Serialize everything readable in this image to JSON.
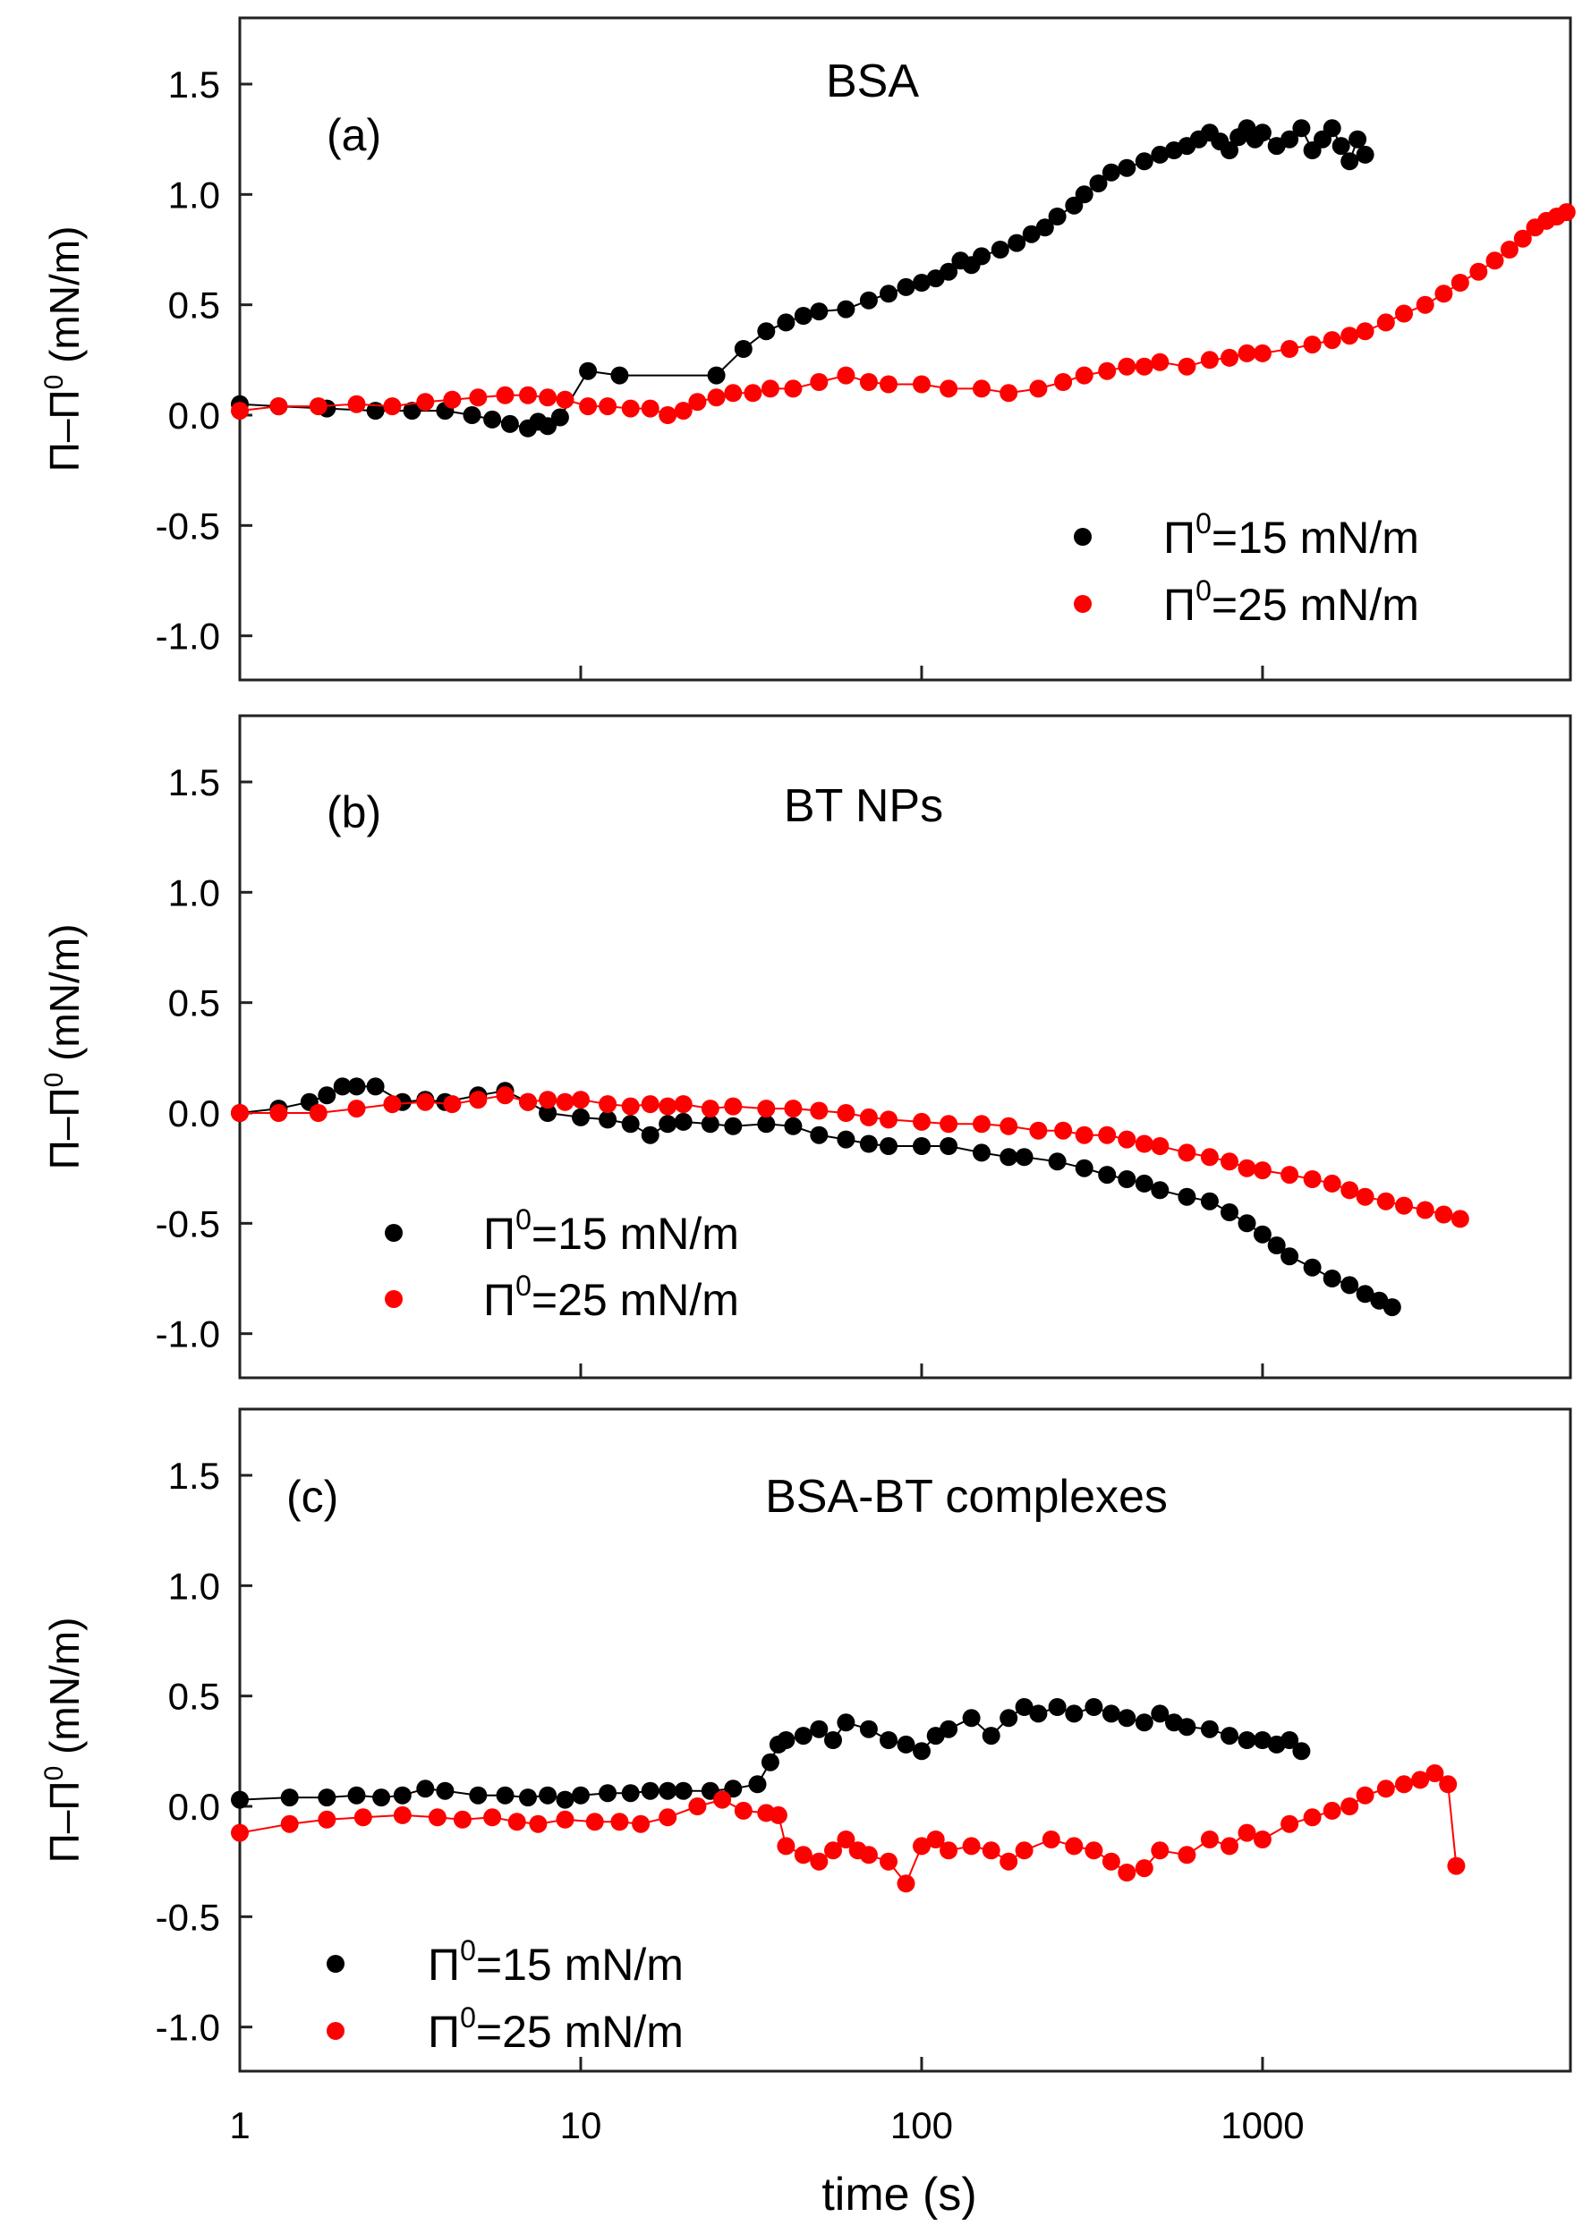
{
  "chart_data": [
    {
      "type": "scatter",
      "panel_label": "(a)",
      "title": "BSA",
      "xlabel": "time (s)",
      "ylabel": "Π−Π⁰ (mN/m)",
      "xscale": "log",
      "xlim": [
        1,
        8000
      ],
      "ylim": [
        -1.2,
        1.8
      ],
      "yticks": [
        -1.0,
        -0.5,
        0.0,
        0.5,
        1.0,
        1.5
      ],
      "ytick_labels": [
        "-1.0",
        "-0.5",
        "0.0",
        "0.5",
        "1.0",
        "1.5"
      ],
      "legend_position": "bottom-right",
      "series": [
        {
          "name": "Π⁰=15 mN/m",
          "legend_main": "Π",
          "legend_sup": "0",
          "legend_rest": "=15 mN/m",
          "color": "#000000",
          "x": [
            1,
            1.3,
            1.8,
            2.5,
            3.2,
            4,
            4.8,
            5.5,
            6.2,
            7,
            7.5,
            8,
            8.7,
            10.5,
            13,
            25,
            30,
            35,
            40,
            45,
            50,
            60,
            70,
            80,
            90,
            100,
            110,
            120,
            130,
            140,
            150,
            170,
            190,
            210,
            230,
            250,
            280,
            300,
            330,
            360,
            400,
            450,
            500,
            550,
            600,
            650,
            700,
            750,
            800,
            850,
            900,
            950,
            1000,
            1100,
            1200,
            1300,
            1400,
            1500,
            1600,
            1700,
            1800,
            1900,
            2000
          ],
          "y": [
            0.05,
            0.04,
            0.03,
            0.02,
            0.02,
            0.02,
            0.0,
            -0.02,
            -0.04,
            -0.06,
            -0.03,
            -0.05,
            -0.01,
            0.2,
            0.18,
            0.18,
            0.3,
            0.38,
            0.42,
            0.45,
            0.47,
            0.48,
            0.52,
            0.55,
            0.58,
            0.6,
            0.62,
            0.65,
            0.7,
            0.68,
            0.72,
            0.75,
            0.78,
            0.82,
            0.85,
            0.9,
            0.95,
            1.0,
            1.05,
            1.1,
            1.12,
            1.15,
            1.18,
            1.2,
            1.22,
            1.25,
            1.28,
            1.24,
            1.2,
            1.26,
            1.3,
            1.25,
            1.28,
            1.22,
            1.25,
            1.3,
            1.2,
            1.25,
            1.3,
            1.22,
            1.15,
            1.25,
            1.18
          ]
        },
        {
          "name": "Π⁰=25 mN/m",
          "legend_main": "Π",
          "legend_sup": "0",
          "legend_rest": "=25 mN/m",
          "color": "#ff0000",
          "x": [
            1,
            1.3,
            1.7,
            2.2,
            2.8,
            3.5,
            4.2,
            5,
            6,
            7,
            8,
            9,
            10.5,
            12,
            14,
            16,
            18,
            20,
            22,
            25,
            28,
            32,
            36,
            42,
            50,
            60,
            70,
            80,
            100,
            120,
            150,
            180,
            220,
            260,
            300,
            350,
            400,
            450,
            500,
            600,
            700,
            800,
            900,
            1000,
            1200,
            1400,
            1600,
            1800,
            2000,
            2300,
            2600,
            3000,
            3400,
            3800,
            4300,
            4800,
            5300,
            5800,
            6300,
            6800,
            7300,
            7800
          ],
          "y": [
            0.02,
            0.04,
            0.04,
            0.05,
            0.04,
            0.06,
            0.07,
            0.08,
            0.09,
            0.09,
            0.08,
            0.07,
            0.04,
            0.04,
            0.03,
            0.03,
            0.0,
            0.02,
            0.06,
            0.08,
            0.1,
            0.1,
            0.12,
            0.12,
            0.15,
            0.18,
            0.15,
            0.14,
            0.14,
            0.12,
            0.12,
            0.1,
            0.12,
            0.15,
            0.18,
            0.2,
            0.22,
            0.22,
            0.24,
            0.22,
            0.25,
            0.26,
            0.28,
            0.28,
            0.3,
            0.32,
            0.34,
            0.36,
            0.38,
            0.42,
            0.46,
            0.5,
            0.55,
            0.6,
            0.65,
            0.7,
            0.75,
            0.8,
            0.85,
            0.88,
            0.9,
            0.92
          ]
        }
      ]
    },
    {
      "type": "scatter",
      "panel_label": "(b)",
      "title": "BT NPs",
      "xlabel": "time (s)",
      "ylabel": "Π−Π⁰ (mN/m)",
      "xscale": "log",
      "xlim": [
        1,
        8000
      ],
      "ylim": [
        -1.2,
        1.8
      ],
      "yticks": [
        -1.0,
        -0.5,
        0.0,
        0.5,
        1.0,
        1.5
      ],
      "ytick_labels": [
        "-1.0",
        "-0.5",
        "0.0",
        "0.5",
        "1.0",
        "1.5"
      ],
      "legend_position": "bottom-left",
      "series": [
        {
          "name": "Π⁰=15 mN/m",
          "legend_main": "Π",
          "legend_sup": "0",
          "legend_rest": "=15 mN/m",
          "color": "#000000",
          "x": [
            1,
            1.3,
            1.6,
            1.8,
            2,
            2.2,
            2.5,
            3,
            3.5,
            4,
            5,
            6,
            7,
            8,
            10,
            12,
            14,
            16,
            18,
            20,
            24,
            28,
            35,
            42,
            50,
            60,
            70,
            80,
            100,
            120,
            150,
            180,
            200,
            250,
            300,
            350,
            400,
            450,
            500,
            600,
            700,
            800,
            900,
            1000,
            1100,
            1200,
            1400,
            1600,
            1800,
            2000,
            2200,
            2400
          ],
          "y": [
            0.0,
            0.02,
            0.05,
            0.08,
            0.12,
            0.12,
            0.12,
            0.05,
            0.06,
            0.05,
            0.08,
            0.1,
            0.05,
            0.0,
            -0.02,
            -0.03,
            -0.05,
            -0.1,
            -0.05,
            -0.04,
            -0.05,
            -0.06,
            -0.05,
            -0.06,
            -0.1,
            -0.12,
            -0.14,
            -0.15,
            -0.15,
            -0.15,
            -0.18,
            -0.2,
            -0.2,
            -0.22,
            -0.25,
            -0.28,
            -0.3,
            -0.32,
            -0.35,
            -0.38,
            -0.4,
            -0.45,
            -0.5,
            -0.55,
            -0.6,
            -0.65,
            -0.7,
            -0.75,
            -0.78,
            -0.82,
            -0.85,
            -0.88
          ]
        },
        {
          "name": "Π⁰=25 mN/m",
          "legend_main": "Π",
          "legend_sup": "0",
          "legend_rest": "=25 mN/m",
          "color": "#ff0000",
          "x": [
            1,
            1.3,
            1.7,
            2.2,
            2.8,
            3.5,
            4.2,
            5,
            6,
            7,
            8,
            9,
            10,
            12,
            14,
            16,
            18,
            20,
            24,
            28,
            35,
            42,
            50,
            60,
            70,
            80,
            100,
            120,
            150,
            180,
            220,
            260,
            300,
            350,
            400,
            450,
            500,
            600,
            700,
            800,
            900,
            1000,
            1200,
            1400,
            1600,
            1800,
            2000,
            2300,
            2600,
            3000,
            3400,
            3800
          ],
          "y": [
            0.0,
            0.0,
            0.0,
            0.02,
            0.04,
            0.05,
            0.04,
            0.06,
            0.08,
            0.05,
            0.06,
            0.05,
            0.06,
            0.04,
            0.03,
            0.04,
            0.03,
            0.04,
            0.02,
            0.03,
            0.02,
            0.02,
            0.01,
            0.0,
            -0.02,
            -0.03,
            -0.04,
            -0.05,
            -0.05,
            -0.06,
            -0.08,
            -0.08,
            -0.1,
            -0.1,
            -0.12,
            -0.14,
            -0.15,
            -0.18,
            -0.2,
            -0.22,
            -0.25,
            -0.26,
            -0.28,
            -0.3,
            -0.32,
            -0.35,
            -0.38,
            -0.4,
            -0.42,
            -0.44,
            -0.46,
            -0.48
          ]
        }
      ]
    },
    {
      "type": "scatter",
      "panel_label": "(c)",
      "title": "BSA-BT complexes",
      "xlabel": "time (s)",
      "ylabel": "Π−Π⁰ (mN/m)",
      "xscale": "log",
      "xlim": [
        1,
        8000
      ],
      "ylim": [
        -1.2,
        1.8
      ],
      "yticks": [
        -1.0,
        -0.5,
        0.0,
        0.5,
        1.0,
        1.5
      ],
      "ytick_labels": [
        "-1.0",
        "-0.5",
        "0.0",
        "0.5",
        "1.0",
        "1.5"
      ],
      "legend_position": "bottom-left",
      "series": [
        {
          "name": "Π⁰=15 mN/m",
          "legend_main": "Π",
          "legend_sup": "0",
          "legend_rest": "=15 mN/m",
          "color": "#000000",
          "x": [
            1,
            1.4,
            1.8,
            2.2,
            2.6,
            3,
            3.5,
            4,
            5,
            6,
            7,
            8,
            9,
            10,
            12,
            14,
            16,
            18,
            20,
            24,
            28,
            33,
            36,
            38,
            40,
            45,
            50,
            55,
            60,
            70,
            80,
            90,
            100,
            110,
            120,
            140,
            160,
            180,
            200,
            220,
            250,
            280,
            320,
            360,
            400,
            450,
            500,
            550,
            600,
            700,
            800,
            900,
            1000,
            1100,
            1200,
            1300
          ],
          "y": [
            0.03,
            0.04,
            0.04,
            0.05,
            0.04,
            0.05,
            0.08,
            0.07,
            0.05,
            0.05,
            0.04,
            0.05,
            0.03,
            0.05,
            0.06,
            0.06,
            0.07,
            0.07,
            0.07,
            0.07,
            0.08,
            0.1,
            0.2,
            0.28,
            0.3,
            0.32,
            0.35,
            0.3,
            0.38,
            0.35,
            0.3,
            0.28,
            0.25,
            0.32,
            0.35,
            0.4,
            0.32,
            0.4,
            0.45,
            0.42,
            0.45,
            0.42,
            0.45,
            0.42,
            0.4,
            0.38,
            0.42,
            0.38,
            0.36,
            0.35,
            0.32,
            0.3,
            0.3,
            0.28,
            0.3,
            0.25
          ]
        },
        {
          "name": "Π⁰=25 mN/m",
          "legend_main": "Π",
          "legend_sup": "0",
          "legend_rest": "=25 mN/m",
          "color": "#ff0000",
          "x": [
            1,
            1.4,
            1.8,
            2.3,
            3,
            3.8,
            4.5,
            5.5,
            6.5,
            7.5,
            9,
            11,
            13,
            15,
            18,
            22,
            26,
            30,
            35,
            38,
            40,
            45,
            50,
            55,
            60,
            65,
            70,
            80,
            90,
            100,
            110,
            120,
            140,
            160,
            180,
            200,
            240,
            280,
            320,
            360,
            400,
            450,
            500,
            600,
            700,
            800,
            900,
            1000,
            1200,
            1400,
            1600,
            1800,
            2000,
            2300,
            2600,
            2900,
            3200,
            3500,
            3700
          ],
          "y": [
            -0.12,
            -0.08,
            -0.06,
            -0.05,
            -0.04,
            -0.05,
            -0.06,
            -0.05,
            -0.07,
            -0.08,
            -0.06,
            -0.07,
            -0.07,
            -0.08,
            -0.05,
            0.0,
            0.03,
            -0.02,
            -0.03,
            -0.04,
            -0.18,
            -0.22,
            -0.25,
            -0.2,
            -0.15,
            -0.2,
            -0.22,
            -0.25,
            -0.35,
            -0.18,
            -0.15,
            -0.2,
            -0.18,
            -0.2,
            -0.25,
            -0.2,
            -0.15,
            -0.18,
            -0.2,
            -0.25,
            -0.3,
            -0.28,
            -0.2,
            -0.22,
            -0.15,
            -0.18,
            -0.12,
            -0.15,
            -0.08,
            -0.05,
            -0.02,
            0.0,
            0.05,
            0.08,
            0.1,
            0.12,
            0.15,
            0.1,
            -0.27
          ]
        }
      ]
    }
  ],
  "x_tick_labels": [
    "1",
    "10",
    "100",
    "1000"
  ],
  "x_tick_values": [
    1,
    10,
    100,
    1000
  ],
  "xlabel": "time (s)",
  "ylabel_parts": {
    "lead": "Π–Π",
    "sup": "0",
    "tail": " (mN/m)"
  }
}
